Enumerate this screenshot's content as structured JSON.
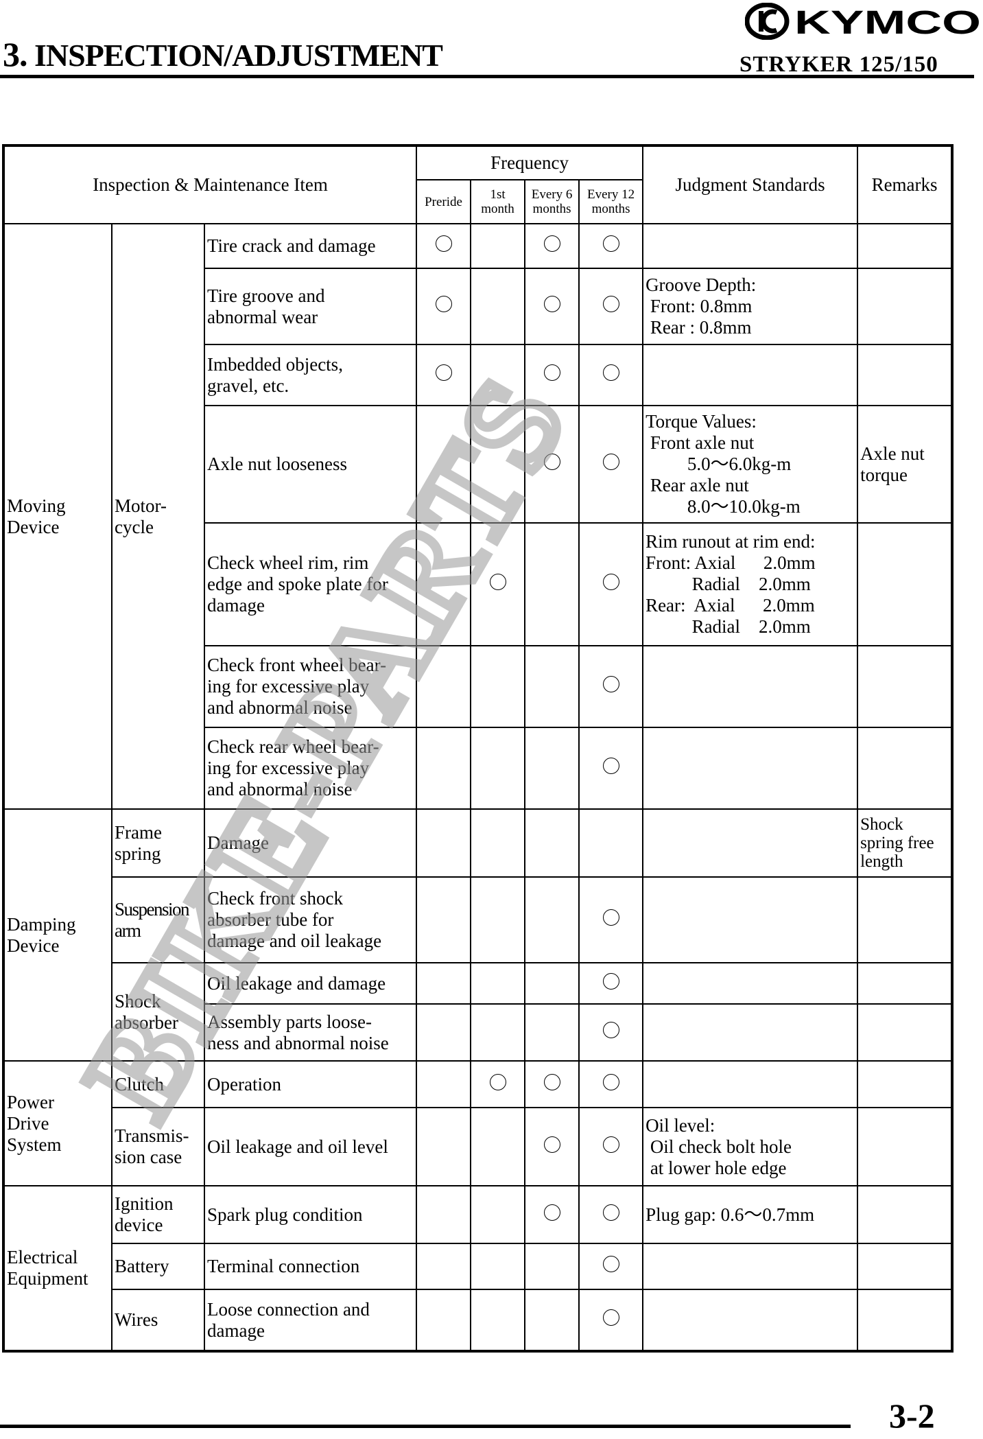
{
  "header": {
    "chapter_number": "3.",
    "chapter_title": "INSPECTION/ADJUSTMENT",
    "model": "STRYKER 125/150",
    "logo": "KYMCO"
  },
  "table": {
    "headers": {
      "item": "Inspection & Maintenance Item",
      "frequency": "Frequency",
      "freq_cols": [
        "Preride",
        "1st\nmonth",
        "Every 6\nmonths",
        "Every 12\nmonths"
      ],
      "standards": "Judgment Standards",
      "remarks": "Remarks"
    },
    "mark_symbol": "circle",
    "rows": [
      {
        "category": "Moving\nDevice",
        "category_span": 7,
        "sub": "Motor-\ncycle",
        "sub_span": 7,
        "item": "Tire crack and damage",
        "marks": [
          1,
          0,
          1,
          1
        ],
        "standard": "",
        "remark": ""
      },
      {
        "item": "Tire groove and\nabnormal wear",
        "marks": [
          1,
          0,
          1,
          1
        ],
        "standard": "Groove Depth:\n Front: 0.8mm\n Rear : 0.8mm",
        "remark": ""
      },
      {
        "item": "Imbedded objects,\ngravel, etc.",
        "marks": [
          1,
          0,
          1,
          1
        ],
        "standard": "",
        "remark": ""
      },
      {
        "item": "Axle nut looseness",
        "marks": [
          0,
          0,
          1,
          1
        ],
        "standard": "Torque Values:\n Front axle nut\n         5.0～6.0kg-m\n Rear axle nut\n         8.0～10.0kg-m",
        "remark": "Axle nut\ntorque"
      },
      {
        "item": "Check wheel rim, rim\nedge and spoke plate for\ndamage",
        "marks": [
          0,
          1,
          0,
          1
        ],
        "standard": "Rim runout at rim end:\nFront: Axial      2.0mm\n          Radial    2.0mm\nRear:  Axial      2.0mm\n          Radial    2.0mm",
        "remark": ""
      },
      {
        "item": "Check front wheel bear-\ning for excessive play\nand abnormal noise",
        "marks": [
          0,
          0,
          0,
          1
        ],
        "standard": "",
        "remark": ""
      },
      {
        "item": "Check rear wheel bear-\ning for excessive play\nand abnormal noise",
        "marks": [
          0,
          0,
          0,
          1
        ],
        "standard": "",
        "remark": ""
      },
      {
        "category": "Damping\nDevice",
        "category_span": 4,
        "sub": "Frame\nspring",
        "sub_span": 1,
        "item": "Damage",
        "marks": [
          0,
          0,
          0,
          0
        ],
        "standard": "",
        "remark": "Shock\nspring free\nlength"
      },
      {
        "sub": "Suspension\narm",
        "sub_span": 1,
        "item": "Check front shock\nabsorber tube for\ndamage and oil leakage",
        "marks": [
          0,
          0,
          0,
          1
        ],
        "standard": "",
        "remark": ""
      },
      {
        "sub": "Shock\nabsorber",
        "sub_span": 2,
        "item": "Oil leakage and damage",
        "marks": [
          0,
          0,
          0,
          1
        ],
        "standard": "",
        "remark": ""
      },
      {
        "item": "Assembly parts loose-\nness and abnormal noise",
        "marks": [
          0,
          0,
          0,
          1
        ],
        "standard": "",
        "remark": ""
      },
      {
        "category": "Power\nDrive\nSystem",
        "category_span": 2,
        "sub": "Clutch",
        "sub_span": 1,
        "item": "Operation",
        "marks": [
          0,
          1,
          1,
          1
        ],
        "standard": "",
        "remark": ""
      },
      {
        "sub": "Transmis-\nsion case",
        "sub_span": 1,
        "item": "Oil leakage and oil level",
        "marks": [
          0,
          0,
          1,
          1
        ],
        "standard": "Oil level:\n Oil check bolt hole\n at lower hole edge",
        "remark": ""
      },
      {
        "category": "Electrical\nEquipment",
        "category_span": 3,
        "sub": "Ignition\ndevice",
        "sub_span": 1,
        "item": "Spark plug condition",
        "marks": [
          0,
          0,
          1,
          1
        ],
        "standard": "Plug gap: 0.6～0.7mm",
        "remark": ""
      },
      {
        "sub": "Battery",
        "sub_span": 1,
        "item": "Terminal connection",
        "marks": [
          0,
          0,
          0,
          1
        ],
        "standard": "",
        "remark": ""
      },
      {
        "sub": "Wires",
        "sub_span": 1,
        "item": "Loose connection and\ndamage",
        "marks": [
          0,
          0,
          0,
          1
        ],
        "standard": "",
        "remark": ""
      }
    ]
  },
  "watermark": "BIKE-PARTS",
  "footer": {
    "page_number": "3-2"
  }
}
